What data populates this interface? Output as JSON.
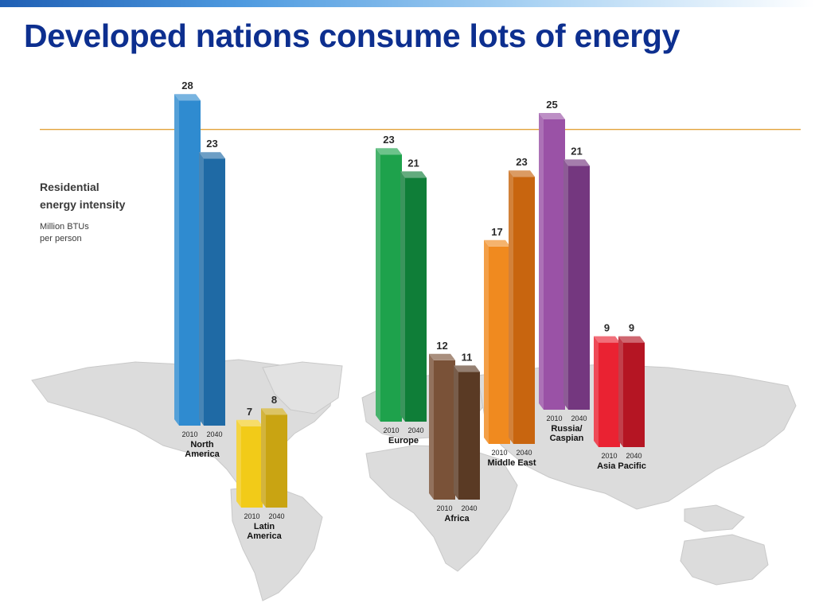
{
  "title": "Developed nations consume lots of energy",
  "colors": {
    "title": "#0d2f8f",
    "reference_line": "#e3a33a",
    "map": "#dcdcdc"
  },
  "chart_data": {
    "type": "bar",
    "ylabel_title": [
      "Residential",
      "energy intensity"
    ],
    "ylabel_unit": [
      "Million BTUs",
      "per person"
    ],
    "years": [
      "2010",
      "2040"
    ],
    "reference_value": 25.5,
    "regions": [
      {
        "name": [
          "North",
          "America"
        ],
        "values": [
          28,
          23
        ],
        "colors": [
          "#2f8bd0",
          "#1f6aa5"
        ]
      },
      {
        "name": [
          "Latin",
          "America"
        ],
        "values": [
          7,
          8
        ],
        "colors": [
          "#f2cb18",
          "#c9a412"
        ]
      },
      {
        "name": [
          "Europe"
        ],
        "values": [
          23,
          21
        ],
        "colors": [
          "#1ea24c",
          "#0f7e38"
        ]
      },
      {
        "name": [
          "Africa"
        ],
        "values": [
          12,
          11
        ],
        "colors": [
          "#7a5238",
          "#5a3a24"
        ]
      },
      {
        "name": [
          "Middle East"
        ],
        "values": [
          17,
          23
        ],
        "colors": [
          "#f08a1f",
          "#c8650f"
        ]
      },
      {
        "name": [
          "Russia/",
          "Caspian"
        ],
        "values": [
          25,
          21
        ],
        "colors": [
          "#9a52a6",
          "#74377f"
        ]
      },
      {
        "name": [
          "Asia Pacific"
        ],
        "values": [
          9,
          9
        ],
        "colors": [
          "#ea2232",
          "#b51523"
        ]
      }
    ]
  }
}
